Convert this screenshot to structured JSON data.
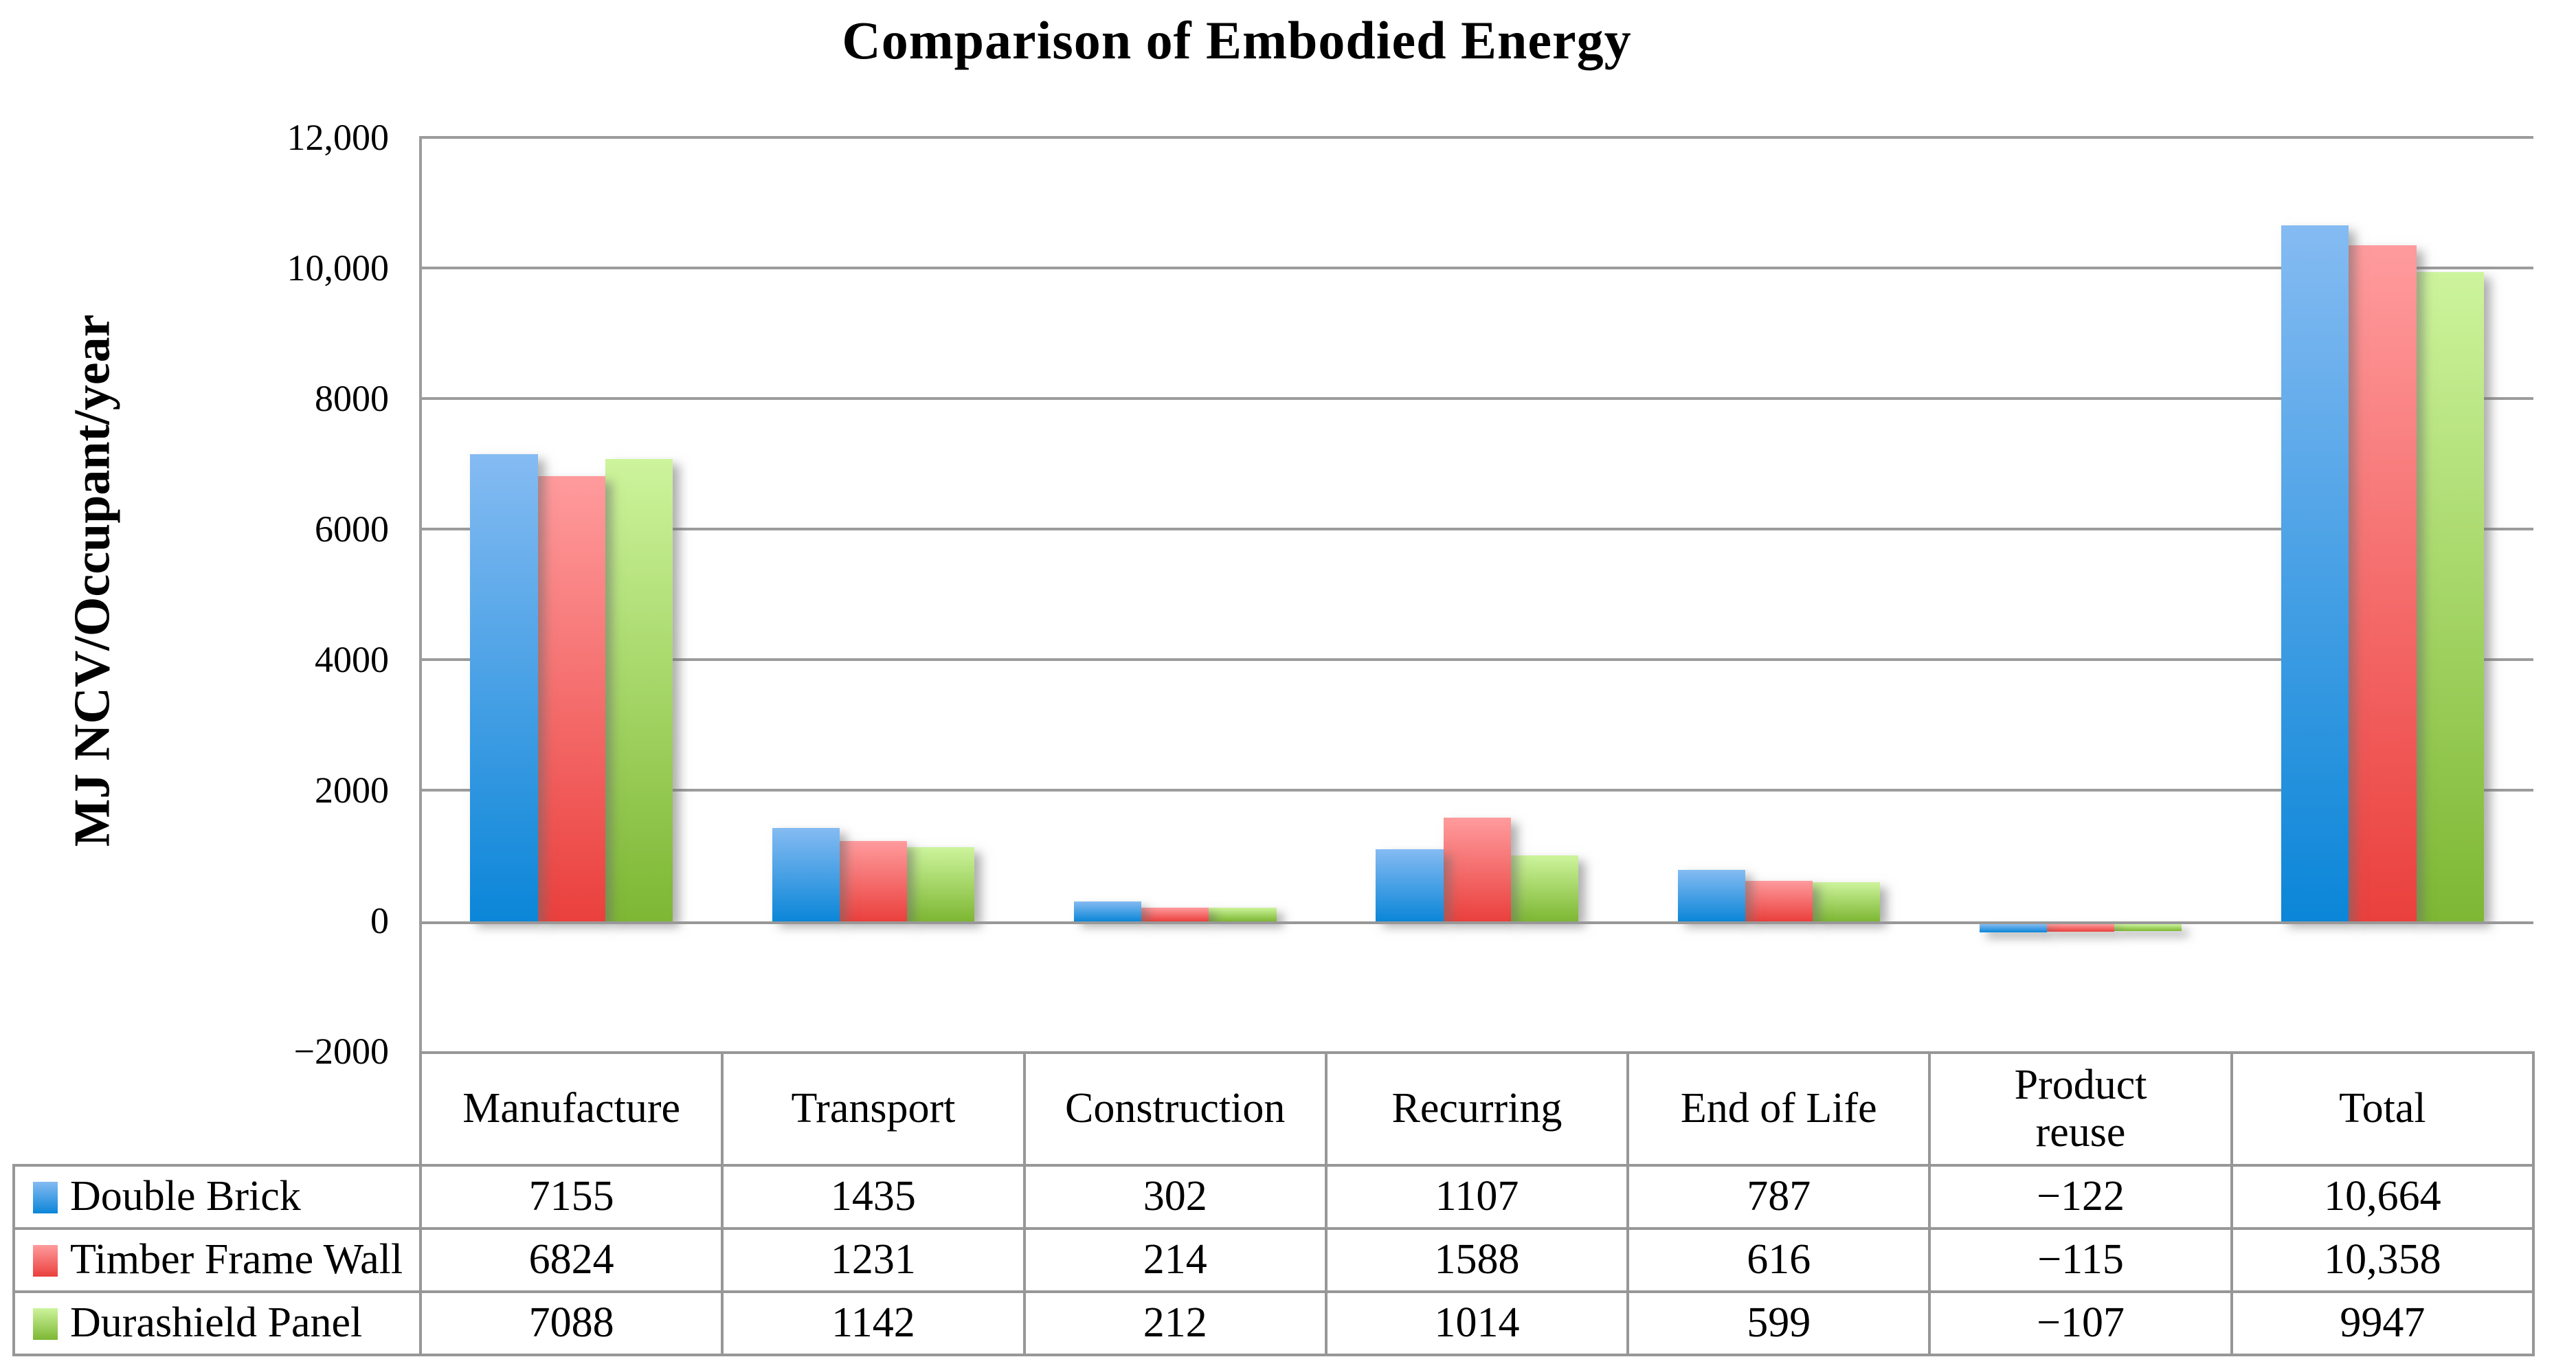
{
  "chart_data": {
    "type": "bar",
    "title": "Comparison of Embodied Energy",
    "ylabel": "MJ NCV/Occupant/year",
    "xlabel": "",
    "ylim": [
      -2000,
      12000
    ],
    "ytick_step": 2000,
    "ytick_labels": [
      "12,000",
      "10,000",
      "8000",
      "6000",
      "4000",
      "2000",
      "0",
      "−2000"
    ],
    "grid": true,
    "legend_position": "data-table-left-column",
    "gridline_color": "#9c9c9c",
    "categories": [
      "Manufacture",
      "Transport",
      "Construction",
      "Recurring",
      "End of Life",
      "Product reuse",
      "Total"
    ],
    "category_header_lines": [
      [
        "Manufacture"
      ],
      [
        "Transport"
      ],
      [
        "Construction"
      ],
      [
        "Recurring"
      ],
      [
        "End of Life"
      ],
      [
        "Product",
        "reuse"
      ],
      [
        "Total"
      ]
    ],
    "series": [
      {
        "name": "Double Brick",
        "values": [
          7155,
          1435,
          302,
          1107,
          787,
          -122,
          10664
        ],
        "display_values": [
          "7155",
          "1435",
          "302",
          "1107",
          "787",
          "−122",
          "10,664"
        ],
        "color_top": "#85BBF2",
        "color_bottom": "#0B86D8"
      },
      {
        "name": "Timber Frame Wall",
        "values": [
          6824,
          1231,
          214,
          1588,
          616,
          -115,
          10358
        ],
        "display_values": [
          "6824",
          "1231",
          "214",
          "1588",
          "616",
          "−115",
          "10,358"
        ],
        "color_top": "#FF9B9D",
        "color_bottom": "#EA403D"
      },
      {
        "name": "Durashield Panel",
        "values": [
          7088,
          1142,
          212,
          1014,
          599,
          -107,
          9947
        ],
        "display_values": [
          "7088",
          "1142",
          "212",
          "1014",
          "599",
          "−107",
          "9947"
        ],
        "color_top": "#CDF49C",
        "color_bottom": "#7DB733"
      }
    ]
  }
}
